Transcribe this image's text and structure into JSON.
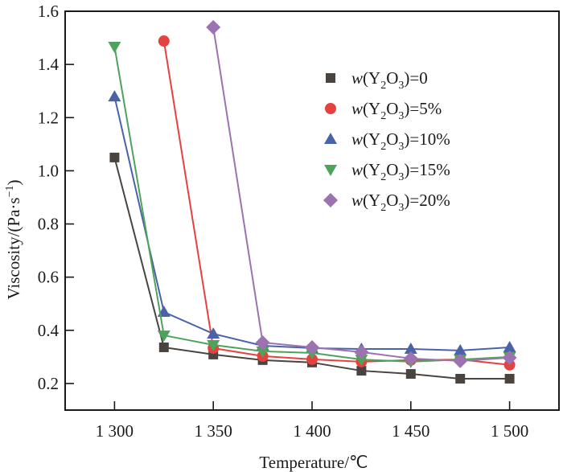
{
  "chart_data": {
    "type": "line",
    "title": "",
    "xlabel": "Temperature/℃",
    "ylabel": "Viscosity/(Pa·s",
    "ylabel_sup": "−1",
    "ylabel_close": ")",
    "xlim": [
      1275,
      1525
    ],
    "ylim": [
      0.1,
      1.6
    ],
    "xticks": [
      1300,
      1350,
      1400,
      1450,
      1500
    ],
    "xtick_labels": [
      "1 300",
      "1 350",
      "1 400",
      "1 450",
      "1 500"
    ],
    "yticks": [
      0.2,
      0.4,
      0.6,
      0.8,
      1.0,
      1.2,
      1.4,
      1.6
    ],
    "ytick_labels": [
      "0.2",
      "0.4",
      "0.6",
      "0.8",
      "1.0",
      "1.2",
      "1.4",
      "1.6"
    ],
    "grid": false,
    "legend_position": "top-right",
    "series": [
      {
        "name": "w(Y2O3)=0",
        "legend": {
          "italic": "w",
          "pre": "(Y",
          "sub1": "2",
          "mid": "O",
          "sub2": "3",
          "post": ")=0"
        },
        "marker": "square",
        "color": "#4a4440",
        "x": [
          1300,
          1325,
          1350,
          1375,
          1400,
          1425,
          1450,
          1475,
          1500
        ],
        "values": [
          1.05,
          0.336,
          0.309,
          0.288,
          0.279,
          0.248,
          0.236,
          0.218,
          0.218
        ]
      },
      {
        "name": "w(Y2O3)=5%",
        "legend": {
          "italic": "w",
          "pre": "(Y",
          "sub1": "2",
          "mid": "O",
          "sub2": "3",
          "post": ")=5%"
        },
        "marker": "circle",
        "color": "#e5423f",
        "x": [
          1325,
          1350,
          1375,
          1400,
          1425,
          1450,
          1475,
          1500
        ],
        "values": [
          1.488,
          0.333,
          0.303,
          0.291,
          0.282,
          0.288,
          0.29,
          0.27
        ]
      },
      {
        "name": "w(Y2O3)=10%",
        "legend": {
          "italic": "w",
          "pre": "(Y",
          "sub1": "2",
          "mid": "O",
          "sub2": "3",
          "post": ")=10%"
        },
        "marker": "triangle-up",
        "color": "#4a62a8",
        "x": [
          1300,
          1325,
          1350,
          1375,
          1400,
          1425,
          1450,
          1475,
          1500
        ],
        "values": [
          1.279,
          0.469,
          0.387,
          0.342,
          0.333,
          0.33,
          0.33,
          0.324,
          0.336
        ]
      },
      {
        "name": "w(Y2O3)=15%",
        "legend": {
          "italic": "w",
          "pre": "(Y",
          "sub1": "2",
          "mid": "O",
          "sub2": "3",
          "post": ")=15%"
        },
        "marker": "triangle-down",
        "color": "#4ea35c",
        "x": [
          1300,
          1325,
          1350,
          1375,
          1400,
          1425,
          1450,
          1475,
          1500
        ],
        "values": [
          1.467,
          0.381,
          0.345,
          0.321,
          0.315,
          0.29,
          0.282,
          0.29,
          0.3
        ]
      },
      {
        "name": "w(Y2O3)=20%",
        "legend": {
          "italic": "w",
          "pre": "(Y",
          "sub1": "2",
          "mid": "O",
          "sub2": "3",
          "post": ")=20%"
        },
        "marker": "diamond",
        "color": "#9c73b0",
        "x": [
          1350,
          1375,
          1400,
          1425,
          1450,
          1475,
          1500
        ],
        "values": [
          1.54,
          0.354,
          0.336,
          0.318,
          0.294,
          0.285,
          0.297
        ]
      }
    ]
  }
}
